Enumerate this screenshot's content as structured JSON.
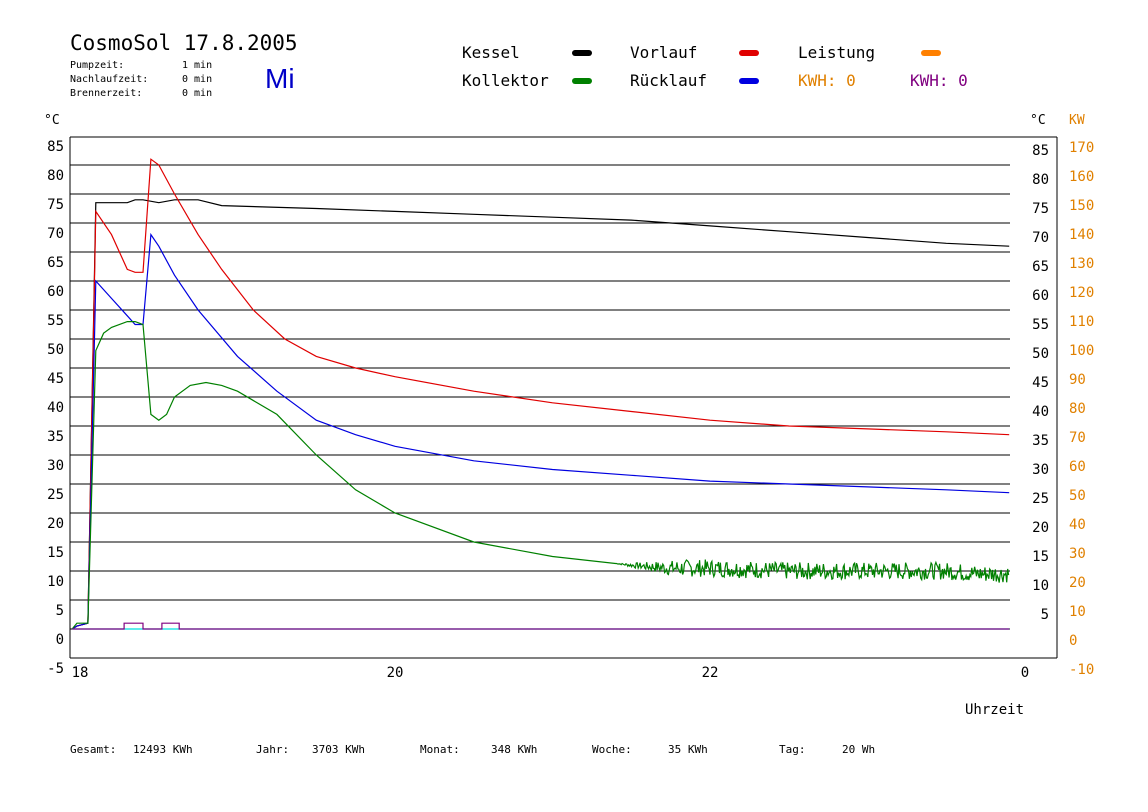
{
  "header": {
    "title": "CosmoSol 17.8.2005",
    "day": "Mi",
    "info": [
      {
        "label": "Pumpzeit:",
        "value": "1 min"
      },
      {
        "label": "Nachlaufzeit:",
        "value": "0 min"
      },
      {
        "label": "Brennerzeit:",
        "value": "0 min"
      }
    ]
  },
  "legend": {
    "kessel": {
      "label": "Kessel",
      "color": "#000000"
    },
    "vorlauf": {
      "label": "Vorlauf",
      "color": "#e00000"
    },
    "leistung": {
      "label": "Leistung",
      "color": "#ff8000"
    },
    "kollektor": {
      "label": "Kollektor",
      "color": "#008000"
    },
    "ruecklauf": {
      "label": "Rücklauf",
      "color": "#0000e0"
    },
    "kwh_orange": "KWH: 0",
    "kwh_purple": "KWH: 0"
  },
  "axes": {
    "left_unit": "°C",
    "right_unit": "°C",
    "kw_unit": "KW",
    "x_label": "Uhrzeit",
    "left_ticks": [
      "85",
      "80",
      "75",
      "70",
      "65",
      "60",
      "55",
      "50",
      "45",
      "40",
      "35",
      "30",
      "25",
      "20",
      "15",
      "10",
      "5",
      "0",
      "-5"
    ],
    "right_ticks": [
      "85",
      "80",
      "75",
      "70",
      "65",
      "60",
      "55",
      "50",
      "45",
      "40",
      "35",
      "30",
      "25",
      "20",
      "15",
      "10",
      "5"
    ],
    "kw_ticks": [
      "170",
      "160",
      "150",
      "140",
      "130",
      "120",
      "110",
      "100",
      "90",
      "80",
      "70",
      "60",
      "50",
      "40",
      "30",
      "20",
      "10",
      "0",
      "-10"
    ],
    "x_ticks": [
      "18",
      "20",
      "22",
      "0"
    ]
  },
  "footer": [
    {
      "label": "Gesamt:",
      "value": "12493 KWh"
    },
    {
      "label": "Jahr:",
      "value": "3703 KWh"
    },
    {
      "label": "Monat:",
      "value": "348 KWh"
    },
    {
      "label": "Woche:",
      "value": "35 KWh"
    },
    {
      "label": "Tag:",
      "value": "20 Wh"
    }
  ],
  "chart_data": {
    "type": "line",
    "x_unit": "hour of day",
    "xlim": [
      18.0,
      24.0
    ],
    "ylim": [
      -5,
      87
    ],
    "y2lim": [
      -10,
      174
    ],
    "colors": {
      "kessel": "#000000",
      "vorlauf": "#e00000",
      "kollektor": "#008000",
      "ruecklauf": "#0000e0",
      "leistung": "#00e0e0",
      "brenner": "#800080"
    },
    "series": [
      {
        "name": "Kessel",
        "x": [
          17.95,
          17.98,
          18.05,
          18.1,
          18.2,
          18.3,
          18.35,
          18.4,
          18.5,
          18.6,
          18.75,
          18.9,
          19.5,
          20.0,
          20.5,
          21.0,
          21.5,
          22.0,
          22.5,
          23.0,
          23.5,
          23.9
        ],
        "y": [
          0,
          0.5,
          1,
          73.5,
          73.5,
          73.5,
          74,
          74,
          73.5,
          74,
          74,
          73,
          72.5,
          72,
          71.5,
          71,
          70.5,
          69.5,
          68.5,
          67.5,
          66.5,
          66
        ]
      },
      {
        "name": "Vorlauf",
        "x": [
          17.95,
          17.98,
          18.05,
          18.1,
          18.2,
          18.3,
          18.35,
          18.4,
          18.45,
          18.5,
          18.6,
          18.75,
          18.9,
          19.1,
          19.3,
          19.5,
          19.75,
          20.0,
          20.5,
          21.0,
          21.5,
          22.0,
          22.5,
          23.0,
          23.5,
          23.9
        ],
        "y": [
          0,
          0.5,
          1,
          72,
          68,
          62,
          61.5,
          61.5,
          81,
          80,
          75,
          68,
          62,
          55,
          50,
          47,
          45,
          43.5,
          41,
          39,
          37.5,
          36,
          35,
          34.5,
          34,
          33.5
        ]
      },
      {
        "name": "Rücklauf",
        "x": [
          17.95,
          17.98,
          18.05,
          18.1,
          18.2,
          18.3,
          18.35,
          18.4,
          18.45,
          18.5,
          18.6,
          18.75,
          19.0,
          19.25,
          19.5,
          19.75,
          20.0,
          20.5,
          21.0,
          21.5,
          22.0,
          22.5,
          23.0,
          23.5,
          23.9
        ],
        "y": [
          0,
          0.5,
          1,
          60,
          57,
          54,
          52.5,
          52.5,
          68,
          66,
          61,
          55,
          47,
          41,
          36,
          33.5,
          31.5,
          29,
          27.5,
          26.5,
          25.5,
          25,
          24.5,
          24,
          23.5
        ]
      },
      {
        "name": "Kollektor",
        "x": [
          17.95,
          17.98,
          18.05,
          18.1,
          18.15,
          18.2,
          18.3,
          18.35,
          18.4,
          18.45,
          18.5,
          18.55,
          18.6,
          18.7,
          18.8,
          18.9,
          19.0,
          19.25,
          19.5,
          19.75,
          20.0,
          20.5,
          21.0,
          21.5,
          21.75,
          22.0,
          22.5,
          23.0,
          23.5,
          23.7,
          23.9
        ],
        "y": [
          0,
          1,
          1,
          48,
          51,
          52,
          53,
          53,
          52.5,
          37,
          36,
          37,
          40,
          42,
          42.5,
          42,
          41,
          37,
          30,
          24,
          20,
          15,
          12.5,
          11,
          10.5,
          10.5,
          10,
          10,
          10,
          9.5,
          9.5
        ],
        "noise_start": 21.4,
        "noise_amplitude": 1.5
      },
      {
        "name": "Leistung",
        "x": [
          17.95,
          23.9
        ],
        "y": [
          0,
          0
        ]
      },
      {
        "name": "Brenner",
        "x": [
          17.95,
          18.28,
          18.28,
          18.4,
          18.4,
          18.52,
          18.52,
          18.63,
          18.63,
          23.9
        ],
        "y": [
          0,
          0,
          1,
          1,
          0,
          0,
          1,
          1,
          0,
          0
        ]
      }
    ]
  }
}
